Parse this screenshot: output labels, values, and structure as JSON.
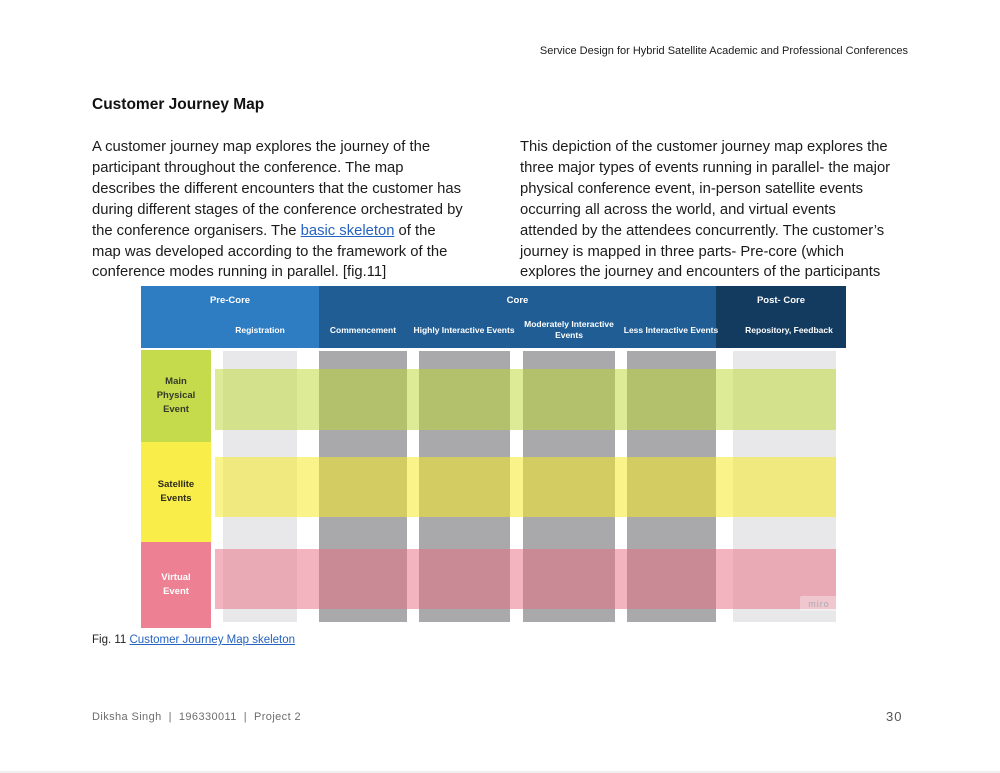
{
  "page": {
    "running_header": "Service Design for Hybrid Satellite Academic and Professional Conferences",
    "title": "Customer Journey Map",
    "left_paragraph": {
      "pre": "A customer journey map explores the journey of the\nparticipant throughout the conference. The map\ndescribes the different encounters that the customer has\nduring different stages of the conference orchestrated by\nthe conference organisers. The ",
      "link": "basic skeleton",
      "post": " of the\nmap was developed according to the framework of the\nconference modes running in parallel. [fig.11]"
    },
    "right_paragraph": "This depiction of the customer journey map explores the\nthree major types of events running in parallel- the major\nphysical conference event, in-person satellite events\noccurring all across the world, and virtual events\nattended by the attendees concurrently. The customer’s\njourney is mapped in three parts- Pre-core (which\nexplores the journey and encounters of the participants",
    "caption": {
      "prefix": "Fig. 11 ",
      "link": "Customer Journey Map skeleton"
    },
    "footer": {
      "author": "Diksha Singh",
      "separator": "|",
      "student_id": "196330011",
      "project": "Project 2",
      "page_number": "30"
    }
  },
  "figure": {
    "phases": [
      {
        "label": "Pre-Core",
        "columns": [
          "Registration"
        ]
      },
      {
        "label": "Core",
        "columns": [
          "Commencement",
          "Highly Interactive Events",
          "Moderately Interactive Events",
          "Less Interactive Events"
        ]
      },
      {
        "label": "Post- Core",
        "columns": [
          "Repository, Feedback"
        ]
      }
    ],
    "rows": [
      {
        "label": "Main Physical Event"
      },
      {
        "label": "Satellite Events"
      },
      {
        "label": "Virtual Event"
      }
    ],
    "watermark": "miro",
    "colors": {
      "pre_core_blue": "#2e7cc1",
      "core_blue": "#1f5d94",
      "post_core_navy": "#133a5f",
      "row_green": "#c6db4c",
      "row_yellow": "#f8ed49",
      "row_pink": "#ee8093",
      "column_light_gray": "#e8e8ea",
      "column_dark_gray": "#a9a9ab",
      "link_blue": "#2563c0"
    }
  }
}
